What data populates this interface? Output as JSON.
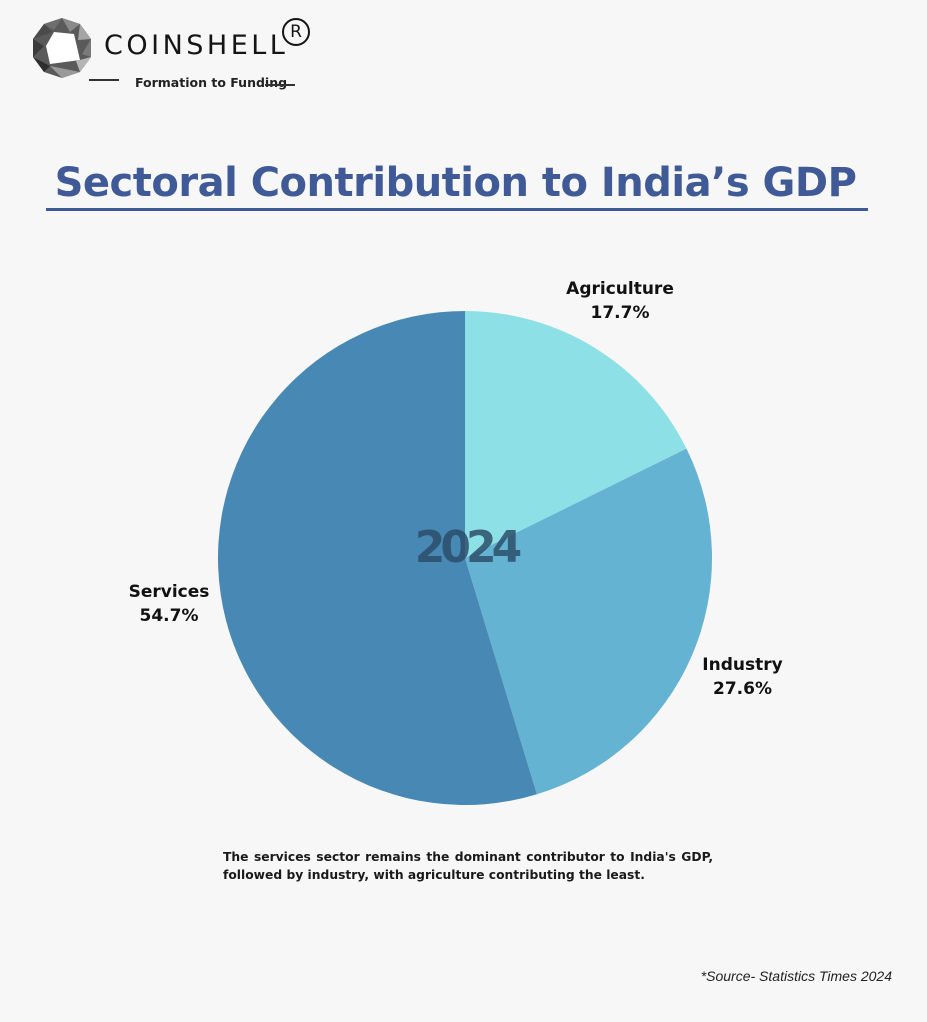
{
  "header": {
    "brand": "COINSHELL",
    "registered_mark": "R",
    "tagline": "Formation to Funding"
  },
  "colors": {
    "title": "#3f5a96",
    "agriculture": "#8de1e6",
    "industry": "#64b3d2",
    "services": "#4888b4",
    "watermark": "#2b4f6a"
  },
  "chart_data": {
    "type": "pie",
    "title": "Sectoral Contribution to India’s GDP",
    "center_label": "2024",
    "start": "top",
    "direction": "clockwise",
    "slices": [
      {
        "label": "Agriculture",
        "value": 17.7,
        "value_label": "17.7%",
        "color": "#8de1e6"
      },
      {
        "label": "Industry",
        "value": 27.6,
        "value_label": "27.6%",
        "color": "#64b3d2"
      },
      {
        "label": "Services",
        "value": 54.7,
        "value_label": "54.7%",
        "color": "#4888b4"
      }
    ]
  },
  "caption": "The services sector remains the dominant contributor to India's GDP, followed by industry, with agriculture contributing the least.",
  "source": "*Source- Statistics Times 2024"
}
